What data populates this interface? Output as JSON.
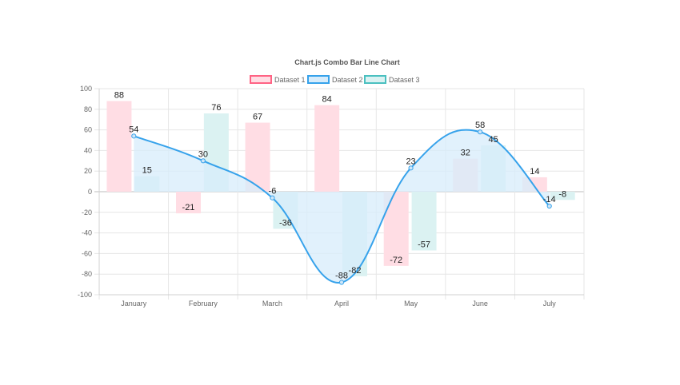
{
  "chart_data": {
    "type": "bar",
    "title": "Chart.js Combo Bar Line Chart",
    "categories": [
      "January",
      "February",
      "March",
      "April",
      "May",
      "June",
      "July"
    ],
    "ylim": [
      -100,
      100
    ],
    "yticks": [
      100,
      80,
      60,
      40,
      20,
      0,
      -20,
      -40,
      -60,
      -80,
      -100
    ],
    "grid": true,
    "legend_position": "top",
    "series": [
      {
        "name": "Dataset 1",
        "type": "bar",
        "values": [
          88,
          -21,
          67,
          84,
          -72,
          32,
          14
        ],
        "border_color": "#ff6384",
        "fill_color": "#ffdde4"
      },
      {
        "name": "Dataset 2",
        "type": "line",
        "values": [
          54,
          30,
          -6,
          -88,
          23,
          58,
          -14
        ],
        "border_color": "#36a2eb",
        "fill_color": "#d7ecfb"
      },
      {
        "name": "Dataset 3",
        "type": "bar",
        "values": [
          15,
          76,
          -36,
          -82,
          -57,
          45,
          -8
        ],
        "border_color": "#4bc0c0",
        "fill_color": "#dbf2f2"
      }
    ]
  }
}
